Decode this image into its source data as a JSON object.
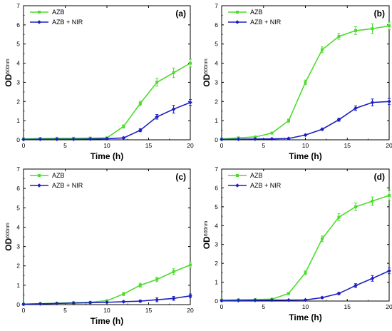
{
  "chart_data": [
    {
      "panel": "(a)",
      "type": "line",
      "xlabel": "Time (h)",
      "ylabel_main": "OD",
      "ylabel_sub": "600nm",
      "xlim": [
        0,
        20
      ],
      "ylim": [
        0,
        7
      ],
      "xticks": [
        0,
        5,
        10,
        15,
        20
      ],
      "yticks": [
        0,
        1,
        2,
        3,
        4,
        5,
        6,
        7
      ],
      "x": [
        0,
        2,
        4,
        6,
        8,
        10,
        12,
        14,
        16,
        18,
        20
      ],
      "series": [
        {
          "name": "AZB",
          "color": "#4ddc2e",
          "marker": "square",
          "values": [
            0.05,
            0.07,
            0.08,
            0.08,
            0.09,
            0.1,
            0.7,
            1.9,
            3.0,
            3.5,
            4.0
          ],
          "errors": [
            0.03,
            0.03,
            0.03,
            0.03,
            0.03,
            0.04,
            0.08,
            0.12,
            0.2,
            0.25,
            0.2
          ]
        },
        {
          "name": "AZB + NIR",
          "color": "#1b1fc2",
          "marker": "diamond",
          "values": [
            0.02,
            0.03,
            0.03,
            0.03,
            0.04,
            0.06,
            0.1,
            0.5,
            1.2,
            1.6,
            1.95
          ],
          "errors": [
            0.02,
            0.02,
            0.02,
            0.02,
            0.02,
            0.03,
            0.04,
            0.08,
            0.12,
            0.2,
            0.15
          ]
        }
      ]
    },
    {
      "panel": "(b)",
      "type": "line",
      "xlabel": "Time (h)",
      "ylabel_main": "OD",
      "ylabel_sub": "600nm",
      "xlim": [
        0,
        20
      ],
      "ylim": [
        0,
        7
      ],
      "xticks": [
        0,
        5,
        10,
        15,
        20
      ],
      "yticks": [
        0,
        1,
        2,
        3,
        4,
        5,
        6,
        7
      ],
      "x": [
        0,
        2,
        4,
        6,
        8,
        10,
        12,
        14,
        16,
        18,
        20
      ],
      "series": [
        {
          "name": "AZB",
          "color": "#4ddc2e",
          "marker": "square",
          "values": [
            0.05,
            0.1,
            0.15,
            0.35,
            1.0,
            3.0,
            4.7,
            5.4,
            5.7,
            5.8,
            5.95
          ],
          "errors": [
            0.03,
            0.03,
            0.04,
            0.05,
            0.08,
            0.12,
            0.15,
            0.15,
            0.2,
            0.25,
            0.2
          ]
        },
        {
          "name": "AZB + NIR",
          "color": "#1b1fc2",
          "marker": "diamond",
          "values": [
            0.02,
            0.03,
            0.04,
            0.05,
            0.07,
            0.25,
            0.55,
            1.05,
            1.65,
            1.95,
            2.0
          ],
          "errors": [
            0.02,
            0.02,
            0.02,
            0.02,
            0.03,
            0.04,
            0.05,
            0.08,
            0.12,
            0.18,
            0.15
          ]
        }
      ]
    },
    {
      "panel": "(c)",
      "type": "line",
      "xlabel": "Time (h)",
      "ylabel_main": "OD",
      "ylabel_sub": "600nm",
      "xlim": [
        0,
        20
      ],
      "ylim": [
        0,
        7
      ],
      "xticks": [
        0,
        5,
        10,
        15,
        20
      ],
      "yticks": [
        0,
        1,
        2,
        3,
        4,
        5,
        6,
        7
      ],
      "x": [
        0,
        2,
        4,
        6,
        8,
        10,
        12,
        14,
        16,
        18,
        20
      ],
      "series": [
        {
          "name": "AZB",
          "color": "#4ddc2e",
          "marker": "square",
          "values": [
            0.02,
            0.05,
            0.07,
            0.1,
            0.12,
            0.2,
            0.55,
            1.0,
            1.3,
            1.7,
            2.05
          ],
          "errors": [
            0.02,
            0.02,
            0.03,
            0.03,
            0.04,
            0.05,
            0.08,
            0.1,
            0.12,
            0.15,
            0.15
          ]
        },
        {
          "name": "AZB + NIR",
          "color": "#1b1fc2",
          "marker": "diamond",
          "values": [
            0.02,
            0.04,
            0.06,
            0.08,
            0.1,
            0.12,
            0.15,
            0.18,
            0.25,
            0.32,
            0.45
          ],
          "errors": [
            0.02,
            0.02,
            0.02,
            0.02,
            0.03,
            0.03,
            0.04,
            0.05,
            0.1,
            0.1,
            0.1
          ]
        }
      ]
    },
    {
      "panel": "(d)",
      "type": "line",
      "xlabel": "Time (h)",
      "ylabel_main": "OD",
      "ylabel_sub": "600nm",
      "xlim": [
        0,
        20
      ],
      "ylim": [
        0,
        7
      ],
      "xticks": [
        0,
        5,
        10,
        15,
        20
      ],
      "yticks": [
        0,
        1,
        2,
        3,
        4,
        5,
        6,
        7
      ],
      "x": [
        0,
        2,
        4,
        6,
        8,
        10,
        12,
        14,
        16,
        18,
        20
      ],
      "series": [
        {
          "name": "AZB",
          "color": "#4ddc2e",
          "marker": "square",
          "values": [
            0.05,
            0.07,
            0.08,
            0.1,
            0.4,
            1.5,
            3.3,
            4.45,
            5.0,
            5.3,
            5.6
          ],
          "errors": [
            0.03,
            0.03,
            0.03,
            0.04,
            0.06,
            0.1,
            0.15,
            0.18,
            0.2,
            0.22,
            0.25
          ]
        },
        {
          "name": "AZB + NIR",
          "color": "#1b1fc2",
          "marker": "diamond",
          "values": [
            0.02,
            0.03,
            0.04,
            0.05,
            0.05,
            0.06,
            0.18,
            0.4,
            0.82,
            1.2,
            1.6
          ],
          "errors": [
            0.02,
            0.02,
            0.02,
            0.02,
            0.02,
            0.03,
            0.04,
            0.06,
            0.1,
            0.15,
            0.15
          ]
        }
      ]
    }
  ]
}
